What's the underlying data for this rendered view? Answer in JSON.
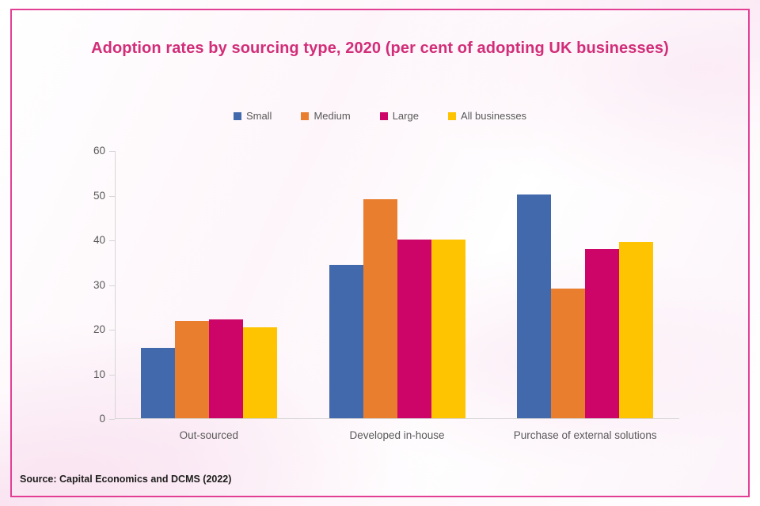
{
  "card": {
    "title": "Adoption rates by sourcing type, 2020 (per cent of adopting UK businesses)",
    "source": "Source: Capital Economics and DCMS (2022)"
  },
  "colors": {
    "title_text": "#d22d78",
    "card_border": "#e23f94",
    "axis_line": "#d6d6d6",
    "axis_label": "#595959",
    "source_text": "#1d1d1b"
  },
  "chart_data": {
    "type": "bar",
    "title": "Adoption rates by sourcing type, 2020 (per cent of adopting UK businesses)",
    "categories": [
      "Out-sourced",
      "Developed in-house",
      "Purchase of external solutions"
    ],
    "series": [
      {
        "name": "Small",
        "color": "#4169ac",
        "values": [
          15.8,
          34.4,
          50
        ]
      },
      {
        "name": "Medium",
        "color": "#e87e2e",
        "values": [
          21.8,
          49,
          29.1
        ]
      },
      {
        "name": "Large",
        "color": "#ce0569",
        "values": [
          22.2,
          40,
          37.9
        ]
      },
      {
        "name": "All businesses",
        "color": "#fec301",
        "values": [
          20.3,
          40,
          39.5
        ]
      }
    ],
    "xlabel": "",
    "ylabel": "",
    "ylim": [
      0,
      60
    ],
    "yticks": [
      0,
      10,
      20,
      30,
      40,
      50,
      60
    ],
    "legend_position": "top",
    "grid": false
  }
}
